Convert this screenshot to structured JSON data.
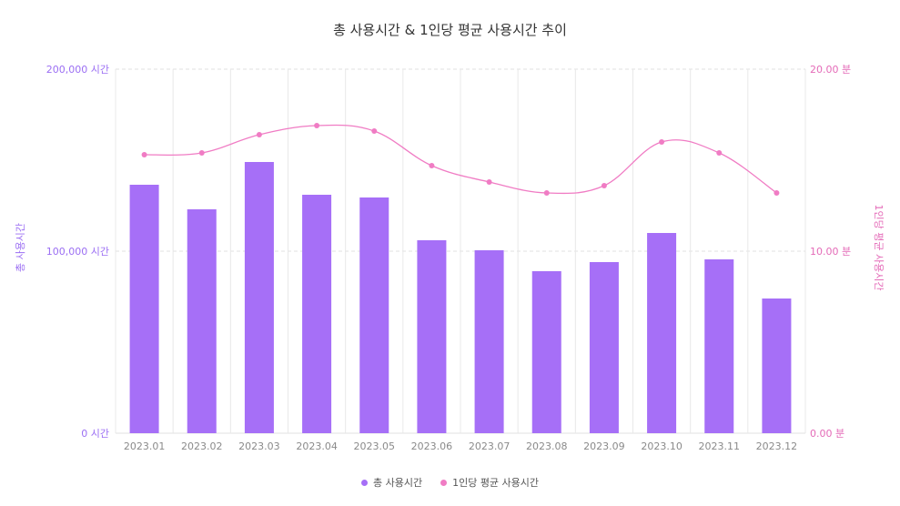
{
  "chart_data": {
    "type": "bar+line",
    "title": "총 사용시간 & 1인당 평균 사용시간 추이",
    "categories": [
      "2023.01",
      "2023.02",
      "2023.03",
      "2023.04",
      "2023.05",
      "2023.06",
      "2023.07",
      "2023.08",
      "2023.09",
      "2023.10",
      "2023.11",
      "2023.12"
    ],
    "series": [
      {
        "name": "총 사용시간",
        "type": "bar",
        "axis": "left",
        "color": "#a66ff7",
        "values": [
          136500,
          123000,
          149000,
          131000,
          129500,
          106000,
          100500,
          89000,
          94000,
          110000,
          95500,
          74000
        ]
      },
      {
        "name": "1인당 평균 사용시간",
        "type": "line",
        "axis": "right",
        "color": "#f07cc4",
        "values": [
          15.3,
          15.4,
          16.4,
          16.9,
          16.6,
          14.7,
          13.8,
          13.2,
          13.6,
          16.0,
          15.4,
          13.2
        ]
      }
    ],
    "left_axis": {
      "title": "총 사용시간",
      "ylim": [
        0,
        200000
      ],
      "ticks": [
        {
          "value": 0,
          "label": "0 시간"
        },
        {
          "value": 100000,
          "label": "100,000 시간"
        },
        {
          "value": 200000,
          "label": "200,000 시간"
        }
      ]
    },
    "right_axis": {
      "title": "1인당 평균 사용시간",
      "ylim": [
        0,
        20
      ],
      "ticks": [
        {
          "value": 0,
          "label": "0.00 분"
        },
        {
          "value": 10,
          "label": "10.00 분"
        },
        {
          "value": 20,
          "label": "20.00 분"
        }
      ]
    },
    "grid": true,
    "legend_position": "bottom"
  },
  "legend": [
    {
      "label": "총 사용시간",
      "color": "#a66ff7"
    },
    {
      "label": "1인당 평균 사용시간",
      "color": "#f07cc4"
    }
  ]
}
